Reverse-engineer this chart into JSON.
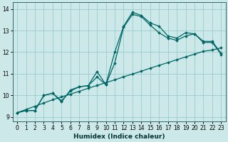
{
  "xlabel": "Humidex (Indice chaleur)",
  "background_color": "#cce8e8",
  "grid_color": "#99cccc",
  "line_color": "#006666",
  "xlim": [
    -0.5,
    23.5
  ],
  "ylim": [
    8.8,
    14.3
  ],
  "xticks": [
    0,
    1,
    2,
    3,
    4,
    5,
    6,
    7,
    8,
    9,
    10,
    11,
    12,
    13,
    14,
    15,
    16,
    17,
    18,
    19,
    20,
    21,
    22,
    23
  ],
  "yticks": [
    9,
    10,
    11,
    12,
    13,
    14
  ],
  "series": [
    [
      9.2,
      9.3,
      9.3,
      10.0,
      10.1,
      9.7,
      10.25,
      10.4,
      10.45,
      11.1,
      10.5,
      12.0,
      13.2,
      13.85,
      13.7,
      13.35,
      13.2,
      12.75,
      12.65,
      12.9,
      12.85,
      12.5,
      12.5,
      11.95
    ],
    [
      9.2,
      9.3,
      9.3,
      10.0,
      10.1,
      9.75,
      10.2,
      10.4,
      10.45,
      10.85,
      10.5,
      11.5,
      13.15,
      13.75,
      13.65,
      13.25,
      12.9,
      12.65,
      12.55,
      12.75,
      12.85,
      12.45,
      12.45,
      11.9
    ],
    [
      9.2,
      9.35,
      9.5,
      9.65,
      9.8,
      9.93,
      10.06,
      10.19,
      10.33,
      10.46,
      10.59,
      10.72,
      10.86,
      10.99,
      11.12,
      11.26,
      11.39,
      11.52,
      11.65,
      11.78,
      11.91,
      12.04,
      12.1,
      12.2
    ]
  ]
}
